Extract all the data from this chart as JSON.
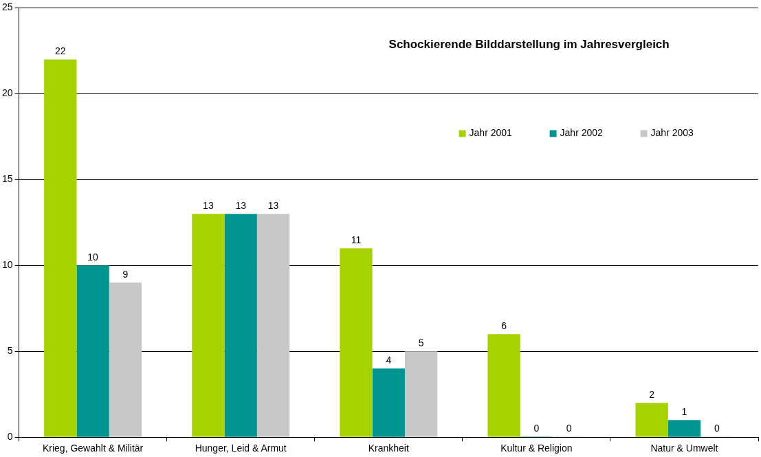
{
  "chart_data": {
    "type": "bar",
    "title": "Schockierende Bilddarstellung im Jahresvergleich",
    "categories": [
      "Krieg, Gewahlt & Militär",
      "Hunger, Leid & Armut",
      "Krankheit",
      "Kultur & Religion",
      "Natur & Umwelt"
    ],
    "series": [
      {
        "name": "Jahr 2001",
        "color": "#a6d200",
        "values": [
          22,
          13,
          11,
          6,
          2
        ]
      },
      {
        "name": "Jahr 2002",
        "color": "#009490",
        "values": [
          10,
          13,
          4,
          0,
          1
        ]
      },
      {
        "name": "Jahr 2003",
        "color": "#c8c8c8",
        "values": [
          9,
          13,
          5,
          0,
          0
        ]
      }
    ],
    "ylim": [
      0,
      25
    ],
    "yticks": [
      0,
      5,
      10,
      15,
      20,
      25
    ],
    "grid": "y",
    "legend": "top right",
    "data_labels": true
  }
}
